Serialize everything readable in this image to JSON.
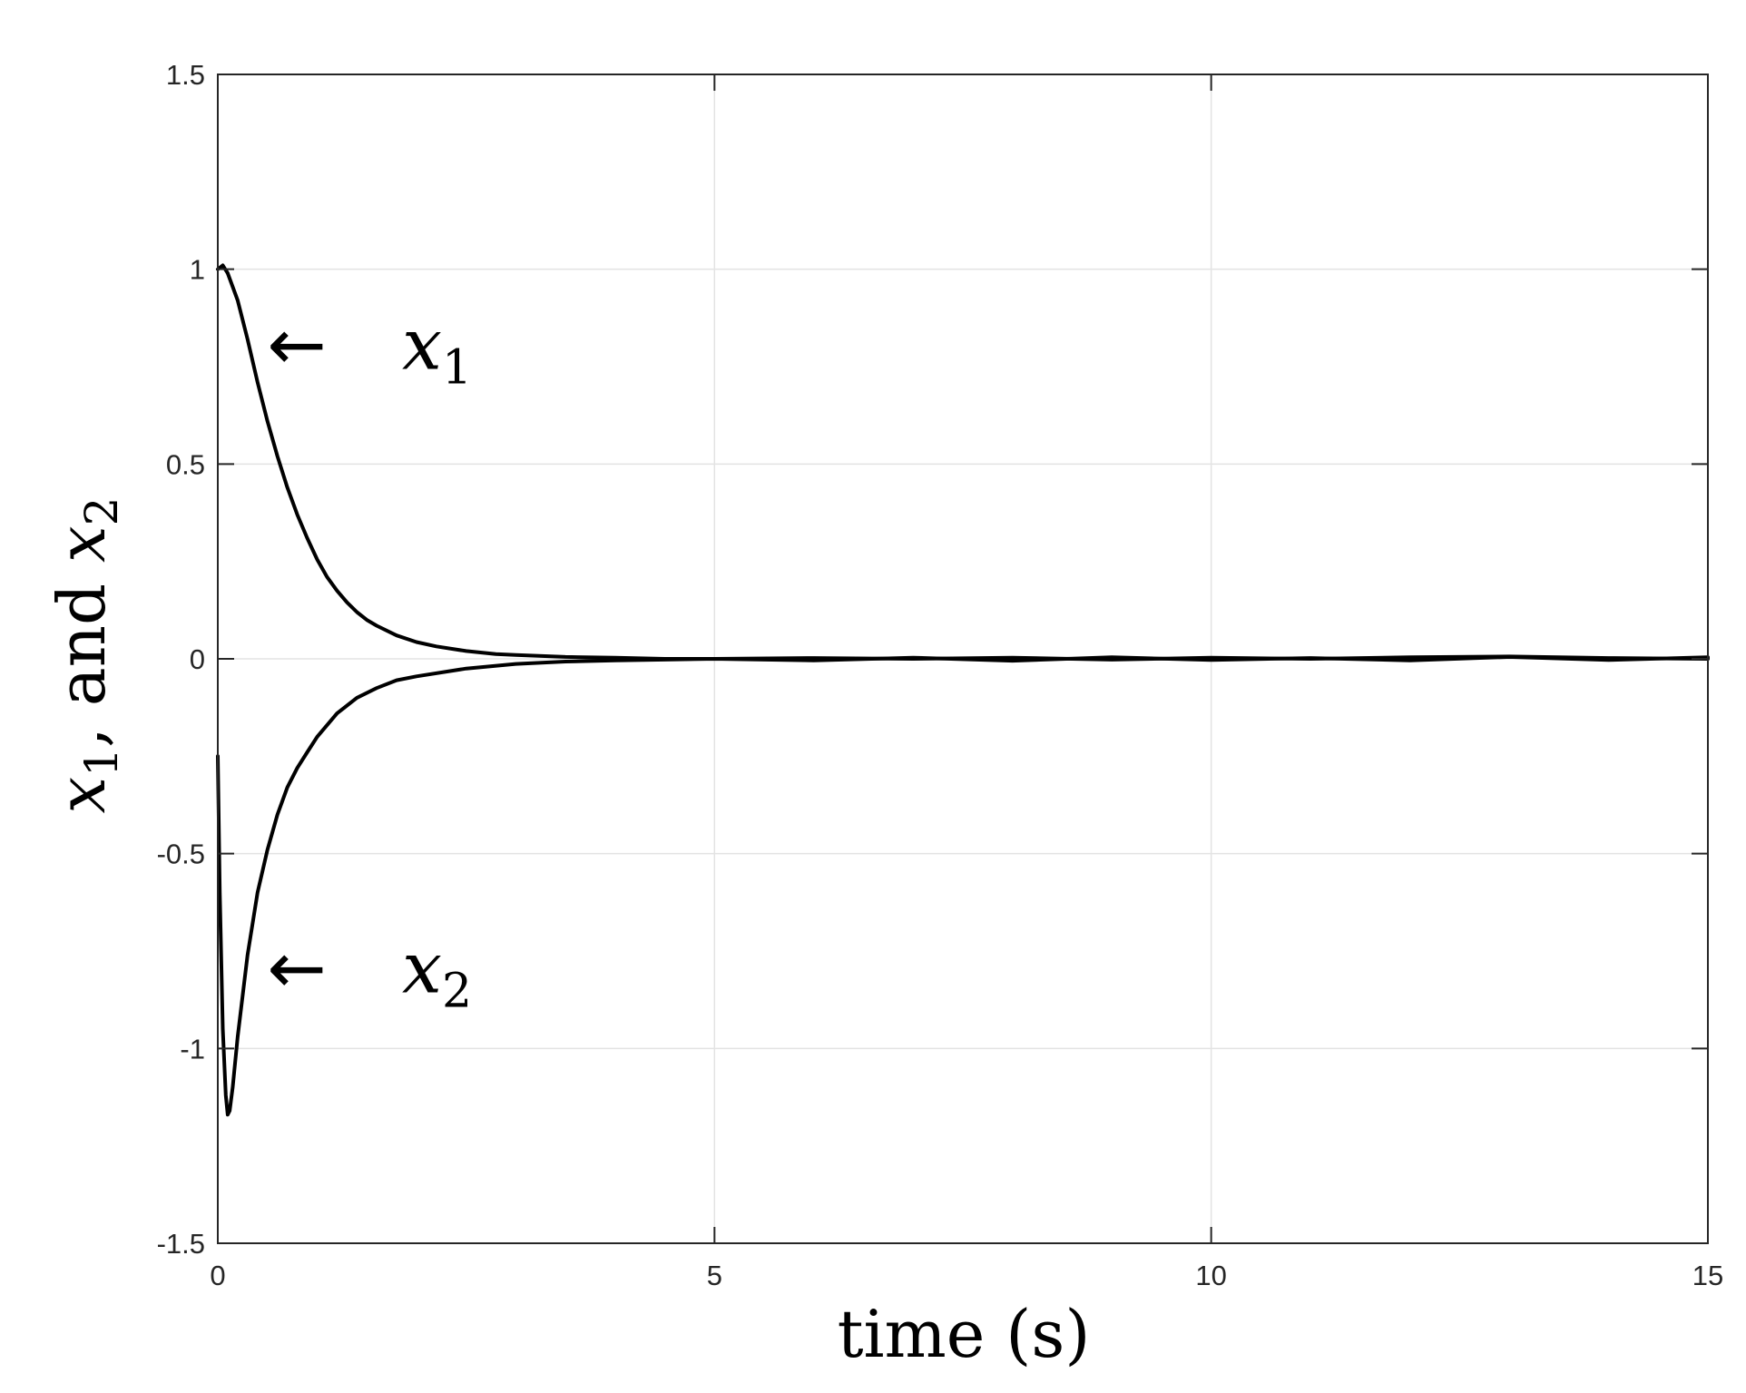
{
  "chart_data": {
    "type": "line",
    "title": "",
    "xlabel": "time (s)",
    "ylabel": {
      "var1": "x",
      "sub1": "1",
      "mid": ", and ",
      "var2": "x",
      "sub2": "2"
    },
    "xlim": [
      0,
      15
    ],
    "ylim": [
      -1.5,
      1.5
    ],
    "xticks": [
      0,
      5,
      10,
      15
    ],
    "xtick_labels": [
      "0",
      "5",
      "10",
      "15"
    ],
    "yticks": [
      1.5,
      1,
      0.5,
      0,
      -0.5,
      -1,
      -1.5
    ],
    "ytick_labels": [
      "1.5",
      "1",
      "0.5",
      "0",
      "-0.5",
      "-1",
      "-1.5"
    ],
    "grid": true,
    "line_color": "#000000",
    "grid_color": "#e3e3e3",
    "annotations": [
      {
        "arrow": "←",
        "var": "x",
        "sub": "1",
        "x": 0.85,
        "y": 0.8
      },
      {
        "arrow": "←",
        "var": "x",
        "sub": "2",
        "x": 0.85,
        "y": -0.8
      }
    ],
    "series": [
      {
        "x": [
          0,
          0.05,
          0.1,
          0.2,
          0.3,
          0.4,
          0.5,
          0.6,
          0.7,
          0.8,
          0.9,
          1.0,
          1.1,
          1.2,
          1.3,
          1.4,
          1.5,
          1.6,
          1.8,
          2.0,
          2.2,
          2.5,
          2.8,
          3.0,
          3.5,
          4.0,
          4.5,
          5,
          6,
          7,
          8,
          9,
          10,
          11,
          12,
          13,
          14,
          15
        ],
        "values": [
          1.0,
          1.01,
          0.99,
          0.92,
          0.82,
          0.71,
          0.61,
          0.52,
          0.44,
          0.37,
          0.31,
          0.255,
          0.21,
          0.175,
          0.145,
          0.12,
          0.1,
          0.085,
          0.06,
          0.043,
          0.032,
          0.02,
          0.012,
          0.01,
          0.005,
          0.003,
          0.0,
          0.0,
          0.002,
          0.0,
          0.003,
          -0.002,
          0.003,
          0.0,
          0.004,
          0.006,
          0.002,
          0.0
        ]
      },
      {
        "x": [
          0,
          0.02,
          0.05,
          0.08,
          0.1,
          0.12,
          0.15,
          0.2,
          0.3,
          0.4,
          0.5,
          0.6,
          0.7,
          0.8,
          0.9,
          1.0,
          1.2,
          1.4,
          1.6,
          1.8,
          2.0,
          2.5,
          3.0,
          3.5,
          4.0,
          4.5,
          5,
          6,
          7,
          8,
          9,
          10,
          11,
          12,
          13,
          14,
          15
        ],
        "values": [
          -0.25,
          -0.6,
          -0.95,
          -1.12,
          -1.17,
          -1.16,
          -1.1,
          -0.97,
          -0.76,
          -0.6,
          -0.49,
          -0.4,
          -0.33,
          -0.28,
          -0.24,
          -0.2,
          -0.14,
          -0.1,
          -0.075,
          -0.055,
          -0.045,
          -0.025,
          -0.013,
          -0.007,
          -0.004,
          -0.002,
          0.0,
          -0.004,
          0.003,
          -0.005,
          0.004,
          -0.003,
          0.002,
          -0.004,
          0.005,
          -0.003,
          0.004
        ]
      }
    ]
  }
}
